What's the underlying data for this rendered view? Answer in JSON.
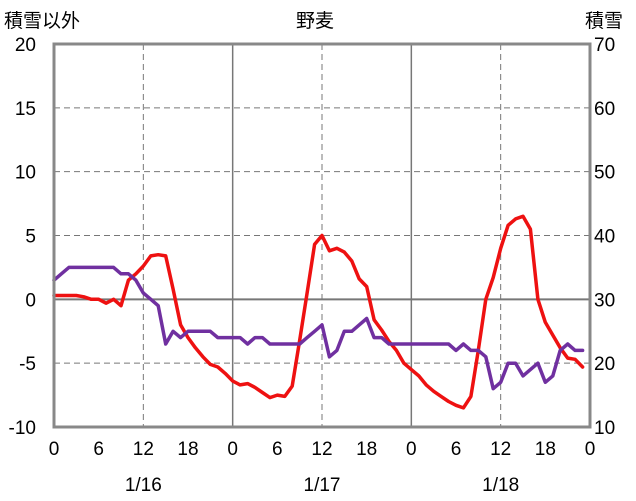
{
  "chart_data": {
    "type": "line",
    "title": "野麦",
    "left_axis_title": "積雪以外",
    "right_axis_title": "積雪",
    "ylim_left": [
      -10,
      20
    ],
    "yticks_left": [
      20,
      15,
      10,
      5,
      0,
      -5,
      -10
    ],
    "ylim_right": [
      10,
      70
    ],
    "yticks_right": [
      70,
      60,
      50,
      40,
      30,
      20,
      10
    ],
    "xlim": [
      0,
      72
    ],
    "xtick_labels": [
      "0",
      "6",
      "12",
      "18",
      "0",
      "6",
      "12",
      "18",
      "0",
      "6",
      "12",
      "18",
      "0"
    ],
    "date_labels": [
      "1/16",
      "1/17",
      "1/18"
    ],
    "date_label_hours": [
      12,
      36,
      60
    ],
    "grid": true,
    "series": [
      {
        "color": "#ee1111",
        "axis": "left",
        "x": [
          0,
          1,
          2,
          3,
          4,
          5,
          6,
          7,
          8,
          9,
          10,
          11,
          12,
          13,
          14,
          15,
          16,
          17,
          18,
          19,
          20,
          21,
          22,
          23,
          24,
          25,
          26,
          27,
          28,
          29,
          30,
          31,
          32,
          33,
          34,
          35,
          36,
          37,
          38,
          39,
          40,
          41,
          42,
          43,
          44,
          45,
          46,
          47,
          48,
          49,
          50,
          51,
          52,
          53,
          54,
          55,
          56,
          57,
          58,
          59,
          60,
          61,
          62,
          63,
          64,
          65,
          66,
          67,
          68,
          69,
          70,
          71
        ],
        "values": [
          0.3,
          0.3,
          0.3,
          0.3,
          0.2,
          0.0,
          0.0,
          -0.3,
          0.0,
          -0.5,
          1.5,
          2.0,
          2.6,
          3.4,
          3.5,
          3.4,
          0.8,
          -2.0,
          -3.0,
          -3.8,
          -4.5,
          -5.1,
          -5.3,
          -5.8,
          -6.4,
          -6.7,
          -6.6,
          -6.9,
          -7.3,
          -7.7,
          -7.5,
          -7.6,
          -6.8,
          -3.2,
          0.5,
          4.3,
          5.0,
          3.8,
          4.0,
          3.7,
          3.0,
          1.6,
          1.0,
          -1.6,
          -2.4,
          -3.3,
          -4.0,
          -5.0,
          -5.5,
          -6.0,
          -6.7,
          -7.2,
          -7.6,
          -8.0,
          -8.3,
          -8.5,
          -7.6,
          -4.0,
          0.0,
          1.7,
          4.0,
          5.8,
          6.3,
          6.5,
          5.5,
          0.0,
          -1.8,
          -2.8,
          -3.8,
          -4.6,
          -4.7,
          -5.3
        ]
      },
      {
        "color": "#7030a0",
        "axis": "right",
        "x": [
          0,
          1,
          2,
          3,
          4,
          5,
          6,
          7,
          8,
          9,
          10,
          11,
          12,
          13,
          14,
          15,
          16,
          17,
          18,
          19,
          20,
          21,
          22,
          23,
          24,
          25,
          26,
          27,
          28,
          29,
          30,
          31,
          32,
          33,
          34,
          35,
          36,
          37,
          38,
          39,
          40,
          41,
          42,
          43,
          44,
          45,
          46,
          47,
          48,
          49,
          50,
          51,
          52,
          53,
          54,
          55,
          56,
          57,
          58,
          59,
          60,
          61,
          62,
          63,
          64,
          65,
          66,
          67,
          68,
          69,
          70,
          71
        ],
        "values": [
          33,
          34,
          35,
          35,
          35,
          35,
          35,
          35,
          35,
          34,
          34,
          33,
          31,
          30,
          29,
          23,
          25,
          24,
          25,
          25,
          25,
          25,
          24,
          24,
          24,
          24,
          23,
          24,
          24,
          23,
          23,
          23,
          23,
          23,
          24,
          25,
          26,
          21,
          22,
          25,
          25,
          26,
          27,
          24,
          24,
          23,
          23,
          23,
          23,
          23,
          23,
          23,
          23,
          23,
          22,
          23,
          22,
          22,
          21,
          16,
          17,
          20,
          20,
          18,
          19,
          20,
          17,
          18,
          22,
          23,
          22,
          22
        ]
      }
    ]
  }
}
